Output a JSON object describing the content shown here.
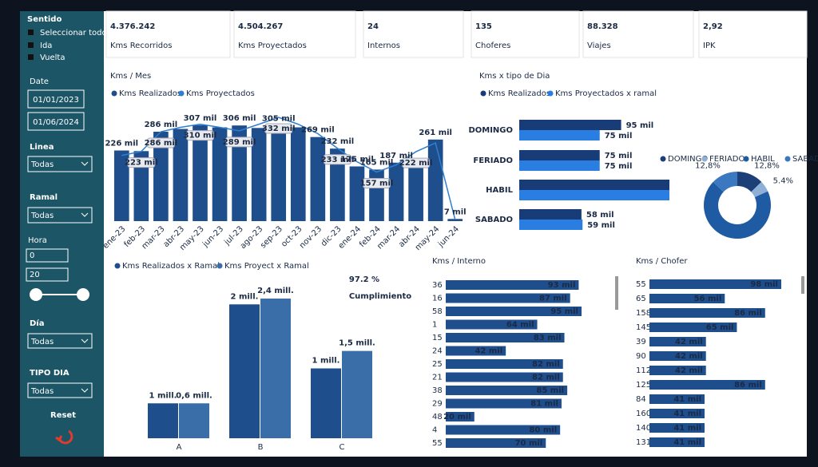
{
  "sidebar": {
    "sentido": {
      "title": "Sentido",
      "options": [
        "Seleccionar todo",
        "Ida",
        "Vuelta"
      ]
    },
    "date": {
      "label": "Date",
      "from": "01/01/2023",
      "to": "01/06/2024"
    },
    "linea": {
      "label": "Linea",
      "value": "Todas"
    },
    "ramal": {
      "label": "Ramal",
      "value": "Todas"
    },
    "hora": {
      "label": "Hora",
      "min": "0",
      "max": "20"
    },
    "dia": {
      "label": "Día",
      "value": "Todas"
    },
    "tipo_dia": {
      "label": "TIPO DIA",
      "value": "Todas"
    },
    "reset": "Reset"
  },
  "kpis": [
    {
      "value": "4.376.242",
      "label": "Kms Recorridos"
    },
    {
      "value": "4.504.267",
      "label": "Kms Proyectados"
    },
    {
      "value": "24",
      "label": "Internos"
    },
    {
      "value": "135",
      "label": "Choferes"
    },
    {
      "value": "88.328",
      "label": "Viajes"
    },
    {
      "value": "2,92",
      "label": "IPK"
    }
  ],
  "cumplimiento": {
    "value": "97.2 %",
    "label": "Cumplimiento"
  },
  "chart_data": [
    {
      "type": "bar-line",
      "title": "Kms / Mes",
      "categories": [
        "ene-23",
        "feb-23",
        "mar-23",
        "abr-23",
        "may-23",
        "jun-23",
        "jul-23",
        "ago-23",
        "sep-23",
        "oct-23",
        "nov-23",
        "dic-23",
        "ene-24",
        "feb-24",
        "mar-24",
        "abr-24",
        "may-24",
        "jun-24"
      ],
      "series": [
        {
          "name": "Kms Realizados",
          "color": "#1f4e8c",
          "values": [
            226,
            224,
            286,
            295,
            307,
            300,
            306,
            298,
            305,
            300,
            269,
            232,
            175,
            165,
            187,
            195,
            261,
            7
          ],
          "value_labels": [
            "226 mil",
            null,
            "286 mil",
            null,
            "307 mil",
            null,
            "306 mil",
            null,
            "305 mil",
            null,
            "269 mil",
            "232 mil",
            "175 mil",
            "165 mil",
            "187 mil",
            null,
            "261 mil",
            "7 mil"
          ]
        },
        {
          "name": "Kms Proyectados",
          "color": "#2f7fd0",
          "values": [
            210,
            223,
            286,
            300,
            310,
            300,
            289,
            310,
            332,
            310,
            280,
            233,
            190,
            157,
            180,
            222,
            250,
            5
          ],
          "value_labels": [
            null,
            "223 mil",
            "286 mil",
            null,
            "310 mil",
            null,
            "289 mil",
            null,
            "332 mil",
            null,
            null,
            "233 mil",
            null,
            "157 mil",
            null,
            "222 mil",
            null,
            null
          ]
        }
      ]
    },
    {
      "type": "hbar",
      "title": "Kms x tipo de Dia",
      "categories": [
        "DOMINGO",
        "FERIADO",
        "HABIL",
        "SABADO"
      ],
      "series": [
        {
          "name": "Kms Realizados",
          "color": "#173c78",
          "values": [
            95,
            75,
            140,
            58
          ],
          "value_labels": [
            "95 mil",
            "75 mil",
            null,
            "58 mil"
          ]
        },
        {
          "name": "Kms Proyectados x ramal",
          "color": "#2a7de1",
          "values": [
            75,
            75,
            140,
            59
          ],
          "value_labels": [
            "75 mil",
            "75 mil",
            null,
            "59 mil"
          ]
        }
      ]
    },
    {
      "type": "pie",
      "categories": [
        "DOMINGO",
        "FERIADO",
        "HABIL",
        "SABADO"
      ],
      "values": [
        12.8,
        5.4,
        69,
        12.8
      ],
      "value_labels": [
        "12,8%",
        "5.4%",
        null,
        "12,8%"
      ],
      "colors": [
        "#1d3f78",
        "#8fb0d6",
        "#1f5ba3",
        "#3b78c0"
      ]
    },
    {
      "type": "bar",
      "categories": [
        "A",
        "B",
        "C"
      ],
      "series": [
        {
          "name": "Kms Realizados x Ramal",
          "color": "#1f4e8c",
          "values": [
            0.6,
            2.3,
            1.2
          ],
          "value_labels": [
            "1 mill.",
            "2 mill.",
            "1 mill."
          ]
        },
        {
          "name": "Kms Proyect x Ramal",
          "color": "#3a6ea8",
          "values": [
            0.6,
            2.4,
            1.5
          ],
          "value_labels": [
            "0,6 mill.",
            "2,4 mill.",
            "1,5 mill."
          ]
        }
      ]
    },
    {
      "type": "hbar-list",
      "title": "Kms / Interno",
      "color": "#1f4e8c",
      "categories": [
        "36",
        "16",
        "58",
        "1",
        "15",
        "24",
        "25",
        "21",
        "38",
        "29",
        "48",
        "4",
        "55"
      ],
      "values": [
        93,
        87,
        95,
        64,
        83,
        42,
        82,
        82,
        85,
        81,
        20,
        80,
        70
      ],
      "value_labels": [
        "93 mil",
        "87 mil",
        "95 mil",
        "64 mil",
        "83 mil",
        "42 mil",
        "82 mil",
        "82 mil",
        "85 mil",
        "81 mil",
        "20 mil",
        "80 mil",
        "70 mil"
      ]
    },
    {
      "type": "hbar-list",
      "title": "Kms / Chofer",
      "color": "#1f4e8c",
      "categories": [
        "55",
        "65",
        "158",
        "145",
        "39",
        "90",
        "112",
        "125",
        "84",
        "160",
        "140",
        "131"
      ],
      "values": [
        98,
        56,
        86,
        65,
        42,
        42,
        42,
        86,
        41,
        41,
        41,
        41
      ],
      "value_labels": [
        "98 mil",
        "56 mil",
        "86 mil",
        "65 mil",
        "42 mil",
        "42 mil",
        "42 mil",
        "86 mil",
        "41 mil",
        "41 mil",
        "41 mil",
        "41 mil"
      ]
    }
  ]
}
